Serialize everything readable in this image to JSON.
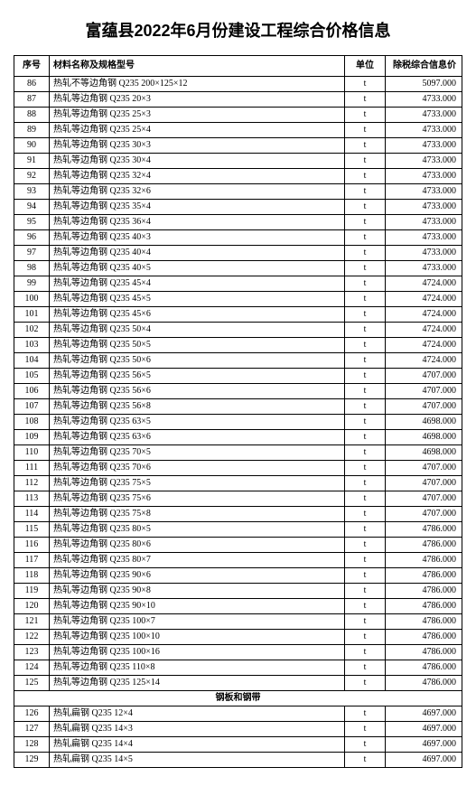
{
  "title": "富蕴县2022年6月份建设工程综合价格信息",
  "headers": {
    "seq": "序号",
    "name": "材料名称及规格型号",
    "unit": "单位",
    "price": "除税综合信息价"
  },
  "section_label": "钢板和钢带",
  "rows": [
    {
      "seq": "86",
      "name": "热轧不等边角钢 Q235 200×125×12",
      "unit": "t",
      "price": "5097.000"
    },
    {
      "seq": "87",
      "name": "热轧等边角钢 Q235 20×3",
      "unit": "t",
      "price": "4733.000"
    },
    {
      "seq": "88",
      "name": "热轧等边角钢 Q235 25×3",
      "unit": "t",
      "price": "4733.000"
    },
    {
      "seq": "89",
      "name": "热轧等边角钢 Q235 25×4",
      "unit": "t",
      "price": "4733.000"
    },
    {
      "seq": "90",
      "name": "热轧等边角钢 Q235 30×3",
      "unit": "t",
      "price": "4733.000"
    },
    {
      "seq": "91",
      "name": "热轧等边角钢 Q235 30×4",
      "unit": "t",
      "price": "4733.000"
    },
    {
      "seq": "92",
      "name": "热轧等边角钢 Q235 32×4",
      "unit": "t",
      "price": "4733.000"
    },
    {
      "seq": "93",
      "name": "热轧等边角钢 Q235 32×6",
      "unit": "t",
      "price": "4733.000"
    },
    {
      "seq": "94",
      "name": "热轧等边角钢 Q235 35×4",
      "unit": "t",
      "price": "4733.000"
    },
    {
      "seq": "95",
      "name": "热轧等边角钢 Q235 36×4",
      "unit": "t",
      "price": "4733.000"
    },
    {
      "seq": "96",
      "name": "热轧等边角钢 Q235 40×3",
      "unit": "t",
      "price": "4733.000"
    },
    {
      "seq": "97",
      "name": "热轧等边角钢 Q235 40×4",
      "unit": "t",
      "price": "4733.000"
    },
    {
      "seq": "98",
      "name": "热轧等边角钢 Q235 40×5",
      "unit": "t",
      "price": "4733.000"
    },
    {
      "seq": "99",
      "name": "热轧等边角钢 Q235 45×4",
      "unit": "t",
      "price": "4724.000"
    },
    {
      "seq": "100",
      "name": "热轧等边角钢 Q235 45×5",
      "unit": "t",
      "price": "4724.000"
    },
    {
      "seq": "101",
      "name": "热轧等边角钢 Q235 45×6",
      "unit": "t",
      "price": "4724.000"
    },
    {
      "seq": "102",
      "name": "热轧等边角钢 Q235 50×4",
      "unit": "t",
      "price": "4724.000"
    },
    {
      "seq": "103",
      "name": "热轧等边角钢 Q235 50×5",
      "unit": "t",
      "price": "4724.000"
    },
    {
      "seq": "104",
      "name": "热轧等边角钢 Q235 50×6",
      "unit": "t",
      "price": "4724.000"
    },
    {
      "seq": "105",
      "name": "热轧等边角钢 Q235 56×5",
      "unit": "t",
      "price": "4707.000"
    },
    {
      "seq": "106",
      "name": "热轧等边角钢 Q235 56×6",
      "unit": "t",
      "price": "4707.000"
    },
    {
      "seq": "107",
      "name": "热轧等边角钢 Q235 56×8",
      "unit": "t",
      "price": "4707.000"
    },
    {
      "seq": "108",
      "name": "热轧等边角钢 Q235 63×5",
      "unit": "t",
      "price": "4698.000"
    },
    {
      "seq": "109",
      "name": "热轧等边角钢 Q235 63×6",
      "unit": "t",
      "price": "4698.000"
    },
    {
      "seq": "110",
      "name": "热轧等边角钢 Q235 70×5",
      "unit": "t",
      "price": "4698.000"
    },
    {
      "seq": "111",
      "name": "热轧等边角钢 Q235 70×6",
      "unit": "t",
      "price": "4707.000"
    },
    {
      "seq": "112",
      "name": "热轧等边角钢 Q235 75×5",
      "unit": "t",
      "price": "4707.000"
    },
    {
      "seq": "113",
      "name": "热轧等边角钢 Q235 75×6",
      "unit": "t",
      "price": "4707.000"
    },
    {
      "seq": "114",
      "name": "热轧等边角钢 Q235 75×8",
      "unit": "t",
      "price": "4707.000"
    },
    {
      "seq": "115",
      "name": "热轧等边角钢 Q235 80×5",
      "unit": "t",
      "price": "4786.000"
    },
    {
      "seq": "116",
      "name": "热轧等边角钢 Q235 80×6",
      "unit": "t",
      "price": "4786.000"
    },
    {
      "seq": "117",
      "name": "热轧等边角钢 Q235 80×7",
      "unit": "t",
      "price": "4786.000"
    },
    {
      "seq": "118",
      "name": "热轧等边角钢 Q235 90×6",
      "unit": "t",
      "price": "4786.000"
    },
    {
      "seq": "119",
      "name": "热轧等边角钢 Q235 90×8",
      "unit": "t",
      "price": "4786.000"
    },
    {
      "seq": "120",
      "name": "热轧等边角钢 Q235 90×10",
      "unit": "t",
      "price": "4786.000"
    },
    {
      "seq": "121",
      "name": "热轧等边角钢 Q235 100×7",
      "unit": "t",
      "price": "4786.000"
    },
    {
      "seq": "122",
      "name": "热轧等边角钢 Q235 100×10",
      "unit": "t",
      "price": "4786.000"
    },
    {
      "seq": "123",
      "name": "热轧等边角钢 Q235 100×16",
      "unit": "t",
      "price": "4786.000"
    },
    {
      "seq": "124",
      "name": "热轧等边角钢 Q235 110×8",
      "unit": "t",
      "price": "4786.000"
    },
    {
      "seq": "125",
      "name": "热轧等边角钢 Q235 125×14",
      "unit": "t",
      "price": "4786.000"
    }
  ],
  "rows2": [
    {
      "seq": "126",
      "name": "热轧扁钢 Q235 12×4",
      "unit": "t",
      "price": "4697.000"
    },
    {
      "seq": "127",
      "name": "热轧扁钢 Q235 14×3",
      "unit": "t",
      "price": "4697.000"
    },
    {
      "seq": "128",
      "name": "热轧扁钢 Q235 14×4",
      "unit": "t",
      "price": "4697.000"
    },
    {
      "seq": "129",
      "name": "热轧扁钢 Q235 14×5",
      "unit": "t",
      "price": "4697.000"
    }
  ]
}
